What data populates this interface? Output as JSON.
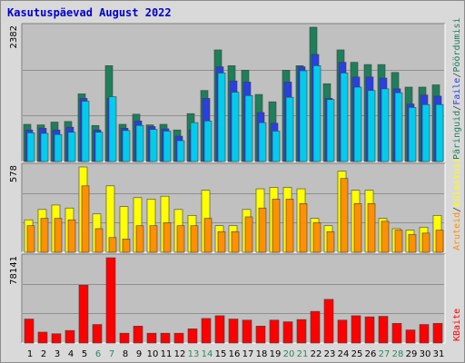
{
  "title": "Kasutuspäevad August 2022",
  "colors": {
    "title": "#0000cc",
    "pageviews": "#1e7f5a",
    "files": "#2a3fe0",
    "hits": "#00ccee",
    "visits": "#ffff00",
    "sites": "#ff9000",
    "kbytes": "#ff0000",
    "weekend_label": "#2a8a5a",
    "plot_bg": "#c0c0c0"
  },
  "chart_data": [
    {
      "type": "bar",
      "panel": "top",
      "ymax_label": "2382",
      "ylim": [
        0,
        2382
      ],
      "categories": [
        "1",
        "2",
        "3",
        "4",
        "5",
        "6",
        "7",
        "8",
        "9",
        "10",
        "11",
        "12",
        "13",
        "14",
        "15",
        "16",
        "17",
        "18",
        "19",
        "20",
        "21",
        "22",
        "23",
        "24",
        "25",
        "26",
        "27",
        "28",
        "29",
        "30",
        "31"
      ],
      "weekend_days": [
        "6",
        "7",
        "13",
        "14",
        "20",
        "21",
        "27",
        "28"
      ],
      "legend": [
        {
          "label": "Päringuid",
          "color_key": "pageviews"
        },
        {
          "label": "Faile",
          "color_key": "files"
        },
        {
          "label": "Pöördumisi",
          "color_key": "hits"
        }
      ],
      "series": [
        {
          "name": "Pöördumisi",
          "values": [
            660,
            650,
            700,
            710,
            1200,
            640,
            1700,
            660,
            840,
            650,
            660,
            560,
            850,
            1260,
            1980,
            1700,
            1620,
            1190,
            1060,
            1620,
            1700,
            2382,
            1380,
            1980,
            1760,
            1720,
            1720,
            1580,
            1320,
            1320,
            1360
          ]
        },
        {
          "name": "Faile",
          "values": [
            560,
            590,
            560,
            610,
            1120,
            560,
            1120,
            590,
            720,
            620,
            580,
            450,
            560,
            1120,
            1680,
            1430,
            1410,
            870,
            680,
            1410,
            1680,
            1900,
            1120,
            1760,
            1500,
            1500,
            1480,
            1290,
            1020,
            1180,
            1160
          ]
        },
        {
          "name": "Päringuid",
          "values": [
            510,
            500,
            480,
            520,
            1070,
            520,
            1150,
            550,
            640,
            570,
            540,
            370,
            690,
            720,
            1570,
            1230,
            1170,
            690,
            540,
            1140,
            1610,
            1700,
            1100,
            1570,
            1320,
            1260,
            1290,
            1220,
            960,
            1010,
            1010
          ]
        }
      ]
    },
    {
      "type": "bar",
      "panel": "middle",
      "ymax_label": "578",
      "ylim": [
        0,
        578
      ],
      "categories": [
        "1",
        "2",
        "3",
        "4",
        "5",
        "6",
        "7",
        "8",
        "9",
        "10",
        "11",
        "12",
        "13",
        "14",
        "15",
        "16",
        "17",
        "18",
        "19",
        "20",
        "21",
        "22",
        "23",
        "24",
        "25",
        "26",
        "27",
        "28",
        "29",
        "30",
        "31"
      ],
      "legend": [
        {
          "label": "Aruteid",
          "color_key": "sites"
        },
        {
          "label": "Külastusi",
          "color_key": "visits"
        }
      ],
      "series": [
        {
          "name": "Külastusi",
          "values": [
            220,
            290,
            320,
            300,
            578,
            260,
            450,
            310,
            370,
            360,
            380,
            290,
            250,
            420,
            180,
            180,
            290,
            430,
            440,
            440,
            430,
            230,
            180,
            550,
            420,
            420,
            230,
            160,
            150,
            170,
            250
          ]
        },
        {
          "name": "Aruteid",
          "values": [
            180,
            230,
            230,
            220,
            450,
            160,
            100,
            90,
            180,
            180,
            200,
            180,
            180,
            230,
            140,
            140,
            240,
            300,
            360,
            360,
            330,
            200,
            140,
            500,
            330,
            330,
            210,
            150,
            120,
            130,
            150
          ]
        }
      ]
    },
    {
      "type": "bar",
      "panel": "bottom",
      "ymax_label": "78141",
      "ylim": [
        0,
        78141
      ],
      "categories": [
        "1",
        "2",
        "3",
        "4",
        "5",
        "6",
        "7",
        "8",
        "9",
        "10",
        "11",
        "12",
        "13",
        "14",
        "15",
        "16",
        "17",
        "18",
        "19",
        "20",
        "21",
        "22",
        "23",
        "24",
        "25",
        "26",
        "27",
        "28",
        "29",
        "30",
        "31"
      ],
      "legend": [
        {
          "label": "KBaite",
          "color_key": "kbytes"
        }
      ],
      "series": [
        {
          "name": "KBaite",
          "values": [
            22000,
            10000,
            8500,
            11500,
            53000,
            17000,
            78141,
            9000,
            15500,
            9000,
            9000,
            9000,
            13000,
            22500,
            25000,
            22000,
            21000,
            15500,
            21000,
            19500,
            21500,
            29000,
            40000,
            21000,
            25000,
            24000,
            24500,
            18000,
            12000,
            17000,
            18000
          ]
        }
      ]
    }
  ]
}
